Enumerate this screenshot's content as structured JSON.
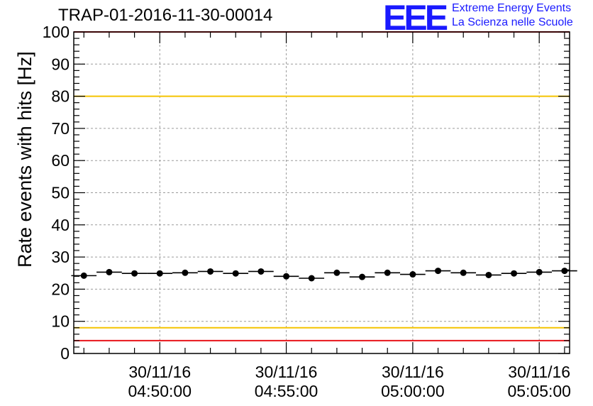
{
  "title": "TRAP-01-2016-11-30-00014",
  "logo": {
    "mark": "EEE",
    "line1": "Extreme Energy Events",
    "line2": "La Scienza nelle Scuole",
    "color": "#1a1aff"
  },
  "chart_data": {
    "type": "scatter",
    "title": "TRAP-01-2016-11-30-00014",
    "xlabel": "",
    "ylabel": "Rate events with hits [Hz]",
    "ylim": [
      0,
      100
    ],
    "yticks": [
      0,
      10,
      20,
      30,
      40,
      50,
      60,
      70,
      80,
      90,
      100
    ],
    "xlim_minutes": [
      -3.4,
      16.2
    ],
    "xticks": [
      {
        "minute": 0,
        "date": "30/11/16",
        "time": "04:50:00"
      },
      {
        "minute": 5,
        "date": "30/11/16",
        "time": "04:55:00"
      },
      {
        "minute": 10,
        "date": "30/11/16",
        "time": "05:00:00"
      },
      {
        "minute": 15,
        "date": "30/11/16",
        "time": "05:05:00"
      }
    ],
    "bin_width_minutes": 1,
    "x_minutes": [
      -3.0,
      -2.0,
      -1.0,
      0.0,
      1.0,
      2.0,
      3.0,
      4.0,
      5.0,
      6.0,
      7.0,
      8.0,
      9.0,
      10.0,
      11.0,
      12.0,
      13.0,
      14.0,
      15.0,
      16.0
    ],
    "values": [
      24.2,
      25.3,
      24.9,
      24.9,
      25.1,
      25.5,
      24.9,
      25.5,
      24.0,
      23.4,
      25.1,
      23.8,
      25.1,
      24.6,
      25.7,
      25.1,
      24.4,
      24.9,
      25.3,
      25.7
    ],
    "reference_lines": [
      {
        "value": 80,
        "color": "#f5c400"
      },
      {
        "value": 8,
        "color": "#f5c400"
      },
      {
        "value": 100,
        "color": "#e8141a"
      },
      {
        "value": 4,
        "color": "#e8141a"
      }
    ],
    "grid": true,
    "marker_color": "#000000"
  }
}
